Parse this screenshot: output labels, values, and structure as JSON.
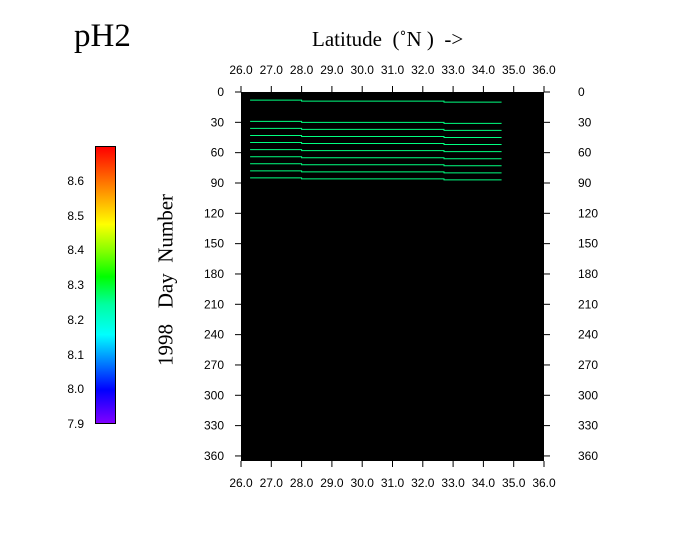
{
  "title": "pH2",
  "colorbar": {
    "ticks": [
      "8.6",
      "8.5",
      "8.4",
      "8.3",
      "8.2",
      "8.1",
      "8.0",
      "7.9"
    ],
    "min": 7.9,
    "max": 8.7
  },
  "chart_data": {
    "type": "heatmap",
    "xlabel": "Latitude  (˚N )  ->",
    "ylabel": "1998   Day  Number",
    "x_ticks": [
      "26.0",
      "27.0",
      "28.0",
      "29.0",
      "30.0",
      "31.0",
      "32.0",
      "33.0",
      "34.0",
      "35.0",
      "36.0"
    ],
    "y_ticks": [
      "0",
      "30",
      "60",
      "90",
      "120",
      "150",
      "180",
      "210",
      "240",
      "270",
      "300",
      "330",
      "360"
    ],
    "xlim": [
      26.0,
      36.0
    ],
    "ylim": [
      0,
      365
    ],
    "background": "#000000",
    "contours": [
      {
        "day": 8,
        "lat_start": 26.3,
        "lat_end": 34.6,
        "color": "#00ff80"
      },
      {
        "day": 29,
        "lat_start": 26.3,
        "lat_end": 34.6,
        "color": "#00ff80"
      },
      {
        "day": 36,
        "lat_start": 26.3,
        "lat_end": 34.6,
        "color": "#00ff80"
      },
      {
        "day": 43,
        "lat_start": 26.3,
        "lat_end": 34.6,
        "color": "#00ff80"
      },
      {
        "day": 50,
        "lat_start": 26.3,
        "lat_end": 34.6,
        "color": "#00ff80"
      },
      {
        "day": 57,
        "lat_start": 26.3,
        "lat_end": 34.6,
        "color": "#00ff80"
      },
      {
        "day": 64,
        "lat_start": 26.3,
        "lat_end": 34.6,
        "color": "#00ff80"
      },
      {
        "day": 71,
        "lat_start": 26.3,
        "lat_end": 34.6,
        "color": "#00ff80"
      },
      {
        "day": 78,
        "lat_start": 26.3,
        "lat_end": 34.6,
        "color": "#00ff80"
      },
      {
        "day": 85,
        "lat_start": 26.3,
        "lat_end": 34.6,
        "color": "#00ff80"
      }
    ]
  }
}
